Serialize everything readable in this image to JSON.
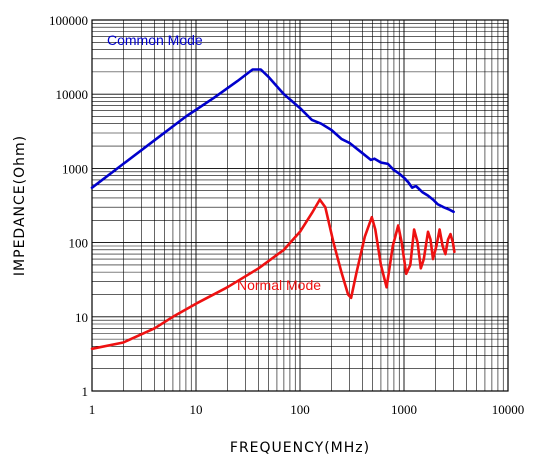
{
  "chart_data": {
    "type": "line",
    "xscale": "log",
    "yscale": "log",
    "xlim": [
      1,
      10000
    ],
    "ylim": [
      1,
      100000
    ],
    "xlabel": "FREQUENCY(MHz)",
    "ylabel": "IMPEDANCE(Ohm)",
    "grid": true,
    "x_ticks": [
      "1",
      "10",
      "100",
      "1000",
      "10000"
    ],
    "y_ticks": [
      "1",
      "10",
      "100",
      "1000",
      "10000",
      "100000"
    ],
    "series": [
      {
        "name": "Common Mode",
        "color": "#0000cc",
        "points": [
          [
            1,
            550
          ],
          [
            2,
            1150
          ],
          [
            4,
            2400
          ],
          [
            8,
            5000
          ],
          [
            15,
            9000
          ],
          [
            25,
            15000
          ],
          [
            35,
            21500
          ],
          [
            42,
            21500
          ],
          [
            50,
            17000
          ],
          [
            70,
            10000
          ],
          [
            100,
            6500
          ],
          [
            130,
            4500
          ],
          [
            160,
            4000
          ],
          [
            200,
            3300
          ],
          [
            250,
            2500
          ],
          [
            300,
            2200
          ],
          [
            400,
            1600
          ],
          [
            480,
            1300
          ],
          [
            520,
            1350
          ],
          [
            600,
            1200
          ],
          [
            700,
            1150
          ],
          [
            800,
            950
          ],
          [
            900,
            850
          ],
          [
            1000,
            750
          ],
          [
            1100,
            650
          ],
          [
            1200,
            550
          ],
          [
            1300,
            580
          ],
          [
            1500,
            480
          ],
          [
            1700,
            430
          ],
          [
            1900,
            380
          ],
          [
            2100,
            330
          ],
          [
            2400,
            300
          ],
          [
            2700,
            280
          ],
          [
            3000,
            260
          ]
        ]
      },
      {
        "name": "Normal Mode",
        "color": "#ee1111",
        "points": [
          [
            1,
            3.7
          ],
          [
            2,
            4.5
          ],
          [
            4,
            7
          ],
          [
            6,
            10
          ],
          [
            10,
            15
          ],
          [
            20,
            25
          ],
          [
            40,
            45
          ],
          [
            70,
            80
          ],
          [
            100,
            140
          ],
          [
            130,
            250
          ],
          [
            155,
            380
          ],
          [
            175,
            300
          ],
          [
            210,
            100
          ],
          [
            250,
            40
          ],
          [
            290,
            20
          ],
          [
            310,
            18
          ],
          [
            350,
            40
          ],
          [
            420,
            120
          ],
          [
            490,
            220
          ],
          [
            530,
            150
          ],
          [
            600,
            50
          ],
          [
            680,
            25
          ],
          [
            780,
            90
          ],
          [
            880,
            170
          ],
          [
            950,
            100
          ],
          [
            1050,
            38
          ],
          [
            1150,
            50
          ],
          [
            1250,
            150
          ],
          [
            1350,
            100
          ],
          [
            1450,
            45
          ],
          [
            1550,
            60
          ],
          [
            1700,
            140
          ],
          [
            1800,
            110
          ],
          [
            1900,
            60
          ],
          [
            2050,
            90
          ],
          [
            2200,
            150
          ],
          [
            2350,
            90
          ],
          [
            2500,
            70
          ],
          [
            2650,
            110
          ],
          [
            2800,
            130
          ],
          [
            2950,
            100
          ],
          [
            3050,
            75
          ]
        ]
      }
    ]
  }
}
